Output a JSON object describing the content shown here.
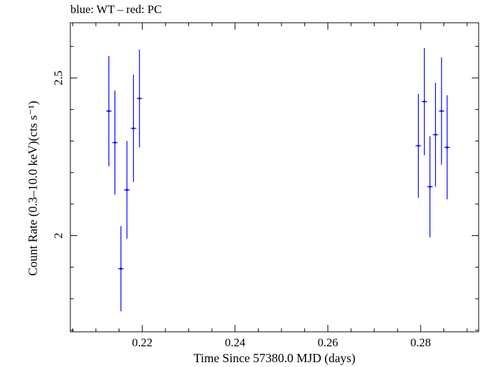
{
  "chart_data": {
    "type": "scatter",
    "title": "blue: WT – red: PC",
    "xlabel": "Time Since 57380.0 MJD (days)",
    "ylabel": "Count Rate (0.3–10.0 keV)(cts s⁻¹)",
    "xlim": [
      0.2045,
      0.2925
    ],
    "ylim": [
      1.695,
      2.675
    ],
    "x_ticks": [
      0.22,
      0.24,
      0.26,
      0.28
    ],
    "x_tick_labels": [
      "0.22",
      "0.24",
      "0.26",
      "0.28"
    ],
    "y_ticks": [
      2,
      2.5
    ],
    "y_tick_labels": [
      "2",
      "2.5"
    ],
    "grid": false,
    "series": [
      {
        "color": "#0000ff",
        "points": [
          {
            "x": 0.2128,
            "y": 2.395,
            "yerr_low": 0.175,
            "yerr_high": 0.175,
            "xerr": 0.0006
          },
          {
            "x": 0.2141,
            "y": 2.295,
            "yerr_low": 0.165,
            "yerr_high": 0.165,
            "xerr": 0.0006
          },
          {
            "x": 0.2154,
            "y": 1.895,
            "yerr_low": 0.135,
            "yerr_high": 0.135,
            "xerr": 0.0006
          },
          {
            "x": 0.2167,
            "y": 2.145,
            "yerr_low": 0.155,
            "yerr_high": 0.155,
            "xerr": 0.0006
          },
          {
            "x": 0.2181,
            "y": 2.34,
            "yerr_low": 0.17,
            "yerr_high": 0.17,
            "xerr": 0.0006
          },
          {
            "x": 0.2194,
            "y": 2.435,
            "yerr_low": 0.155,
            "yerr_high": 0.155,
            "xerr": 0.0006
          },
          {
            "x": 0.2795,
            "y": 2.285,
            "yerr_low": 0.165,
            "yerr_high": 0.165,
            "xerr": 0.0006
          },
          {
            "x": 0.2808,
            "y": 2.425,
            "yerr_low": 0.17,
            "yerr_high": 0.17,
            "xerr": 0.0006
          },
          {
            "x": 0.282,
            "y": 2.155,
            "yerr_low": 0.16,
            "yerr_high": 0.16,
            "xerr": 0.0006
          },
          {
            "x": 0.2832,
            "y": 2.32,
            "yerr_low": 0.165,
            "yerr_high": 0.165,
            "xerr": 0.0006
          },
          {
            "x": 0.2845,
            "y": 2.395,
            "yerr_low": 0.17,
            "yerr_high": 0.17,
            "xerr": 0.0006
          },
          {
            "x": 0.2857,
            "y": 2.28,
            "yerr_low": 0.165,
            "yerr_high": 0.165,
            "xerr": 0.0006
          }
        ]
      }
    ]
  }
}
